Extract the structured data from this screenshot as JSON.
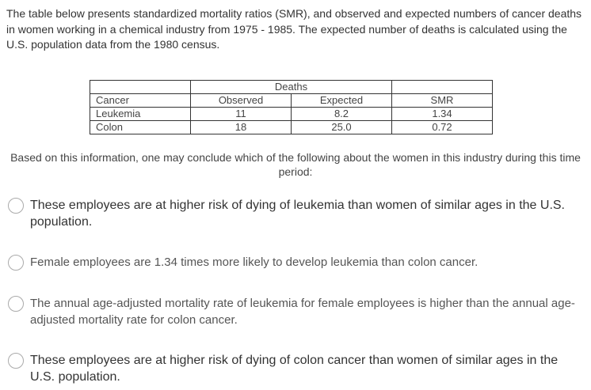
{
  "intro": "The table below presents standardized mortality ratios (SMR), and observed and expected numbers of cancer deaths in women working in a chemical industry from 1975 - 1985. The expected number of deaths is calculated using the U.S. population data from the 1980 census.",
  "table": {
    "group_header": "Deaths",
    "header": [
      "Cancer",
      "Observed",
      "Expected",
      "SMR"
    ],
    "rows": [
      [
        "Leukemia",
        "11",
        "8.2",
        "1.34"
      ],
      [
        "Colon",
        "18",
        "25.0",
        "0.72"
      ]
    ]
  },
  "question": "Based on this information, one may conclude which of the following about the women in  this industry during this time period:",
  "options": [
    "These employees are at higher risk of dying of leukemia than women of similar ages in the U.S. population.",
    "Female employees are 1.34 times more likely to develop leukemia than colon cancer.",
    "The annual age-adjusted mortality rate of leukemia for female employees is higher than the annual age-adjusted mortality rate for colon cancer.",
    "These employees are at higher risk of dying of colon cancer than women of similar ages in the U.S. population."
  ]
}
